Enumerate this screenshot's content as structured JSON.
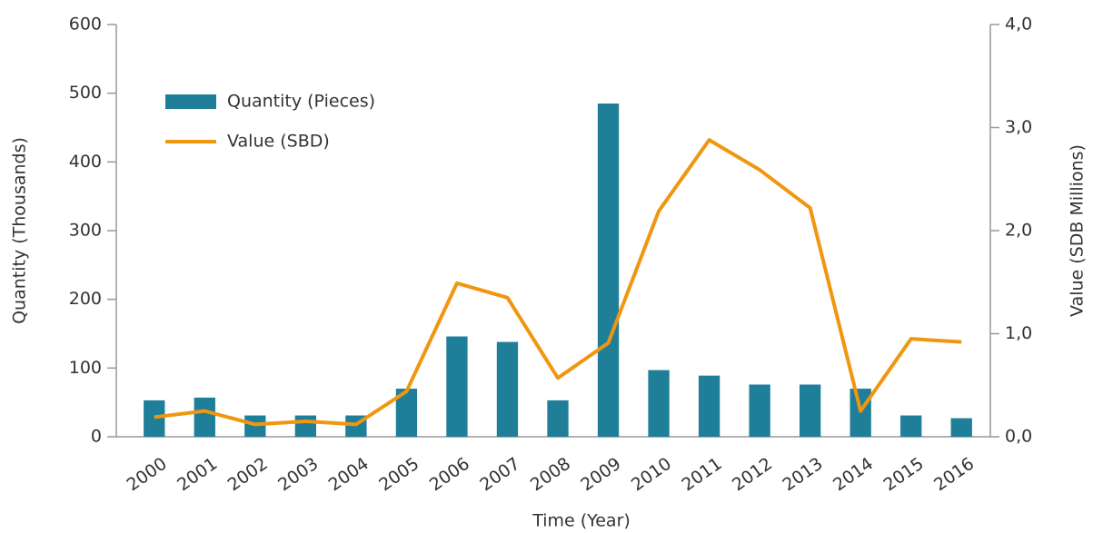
{
  "chart_data": {
    "type": "bar_line",
    "xlabel": "Time (Year)",
    "ylabel": "Quantity (Thousands)",
    "y2label": "Value (SDB Millions)",
    "categories": [
      "2000",
      "2001",
      "2002",
      "2003",
      "2004",
      "2005",
      "2006",
      "2007",
      "2008",
      "2009",
      "2010",
      "2011",
      "2012",
      "2013",
      "2014",
      "2015",
      "2016"
    ],
    "series": [
      {
        "name": "Quantity (Pieces)",
        "type": "bar",
        "color": "#1f7f99",
        "values": [
          53,
          57,
          31,
          31,
          31,
          70,
          146,
          138,
          53,
          485,
          97,
          89,
          76,
          76,
          70,
          31,
          27
        ]
      },
      {
        "name": "Value (SBD)",
        "type": "line",
        "axis": "y2",
        "color": "#f0960f",
        "values": [
          0.19,
          0.25,
          0.12,
          0.15,
          0.12,
          0.44,
          1.49,
          1.35,
          0.57,
          0.91,
          2.19,
          2.88,
          2.59,
          2.22,
          0.25,
          0.95,
          0.92
        ]
      }
    ],
    "ylim": [
      0,
      600
    ],
    "yticks": [
      0,
      100,
      200,
      300,
      400,
      500,
      600
    ],
    "y2lim": [
      0,
      4
    ],
    "y2ticks": [
      {
        "value": 0,
        "label": "0,0"
      },
      {
        "value": 1,
        "label": "1,0"
      },
      {
        "value": 2,
        "label": "2,0"
      },
      {
        "value": 3,
        "label": "3,0"
      },
      {
        "value": 4,
        "label": "4,0"
      }
    ],
    "legend": "upper left"
  }
}
